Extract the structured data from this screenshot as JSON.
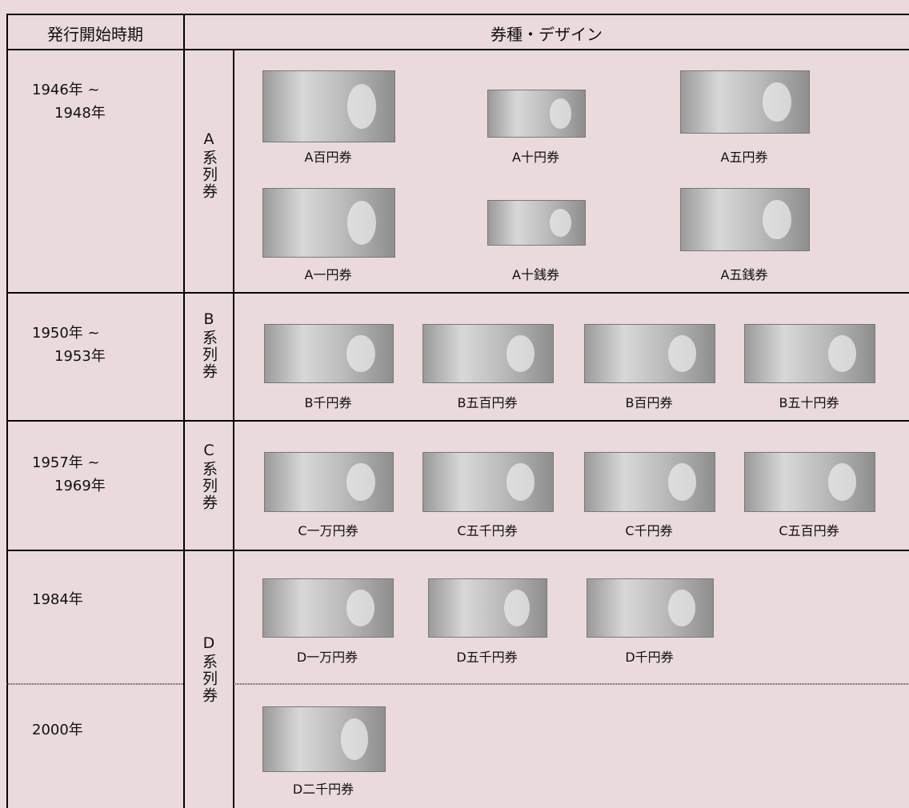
{
  "header": {
    "period": "発行開始時期",
    "design": "券種・デザイン"
  },
  "periods": [
    [
      "1946年 ~",
      "1948年"
    ],
    [
      "1950年 ~",
      "1953年"
    ],
    [
      "1957年 ~",
      "1969年"
    ],
    [
      "1984年"
    ],
    [
      "2000年"
    ]
  ],
  "series": [
    "A系列券",
    "B系列券",
    "C系列券",
    "D系列券"
  ],
  "notes": [
    [
      "A百円券",
      "A十円券",
      "A五円券",
      "A一円券",
      "A十銭券",
      "A五銭券"
    ],
    [
      "B千円券",
      "B五百円券",
      "B百円券",
      "B五十円券"
    ],
    [
      "C一万円券",
      "C五千円券",
      "C千円券",
      "C五百円券"
    ],
    [
      "D一万円券",
      "D五千円券",
      "D千円券"
    ],
    [
      "D二千円券"
    ]
  ]
}
